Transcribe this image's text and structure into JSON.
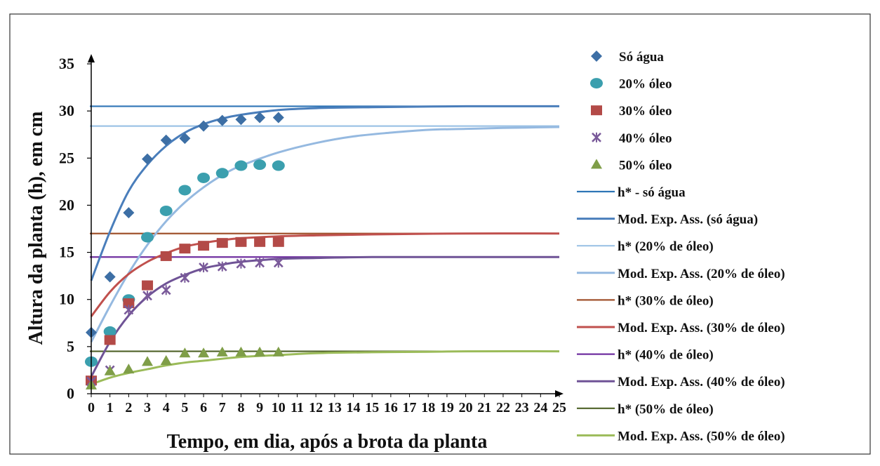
{
  "chart_data": {
    "type": "scatter",
    "title": "",
    "xlabel": "Tempo, em dia, após a brota da planta",
    "ylabel": "Altura da planta (h), em cm",
    "xlim": [
      0,
      25
    ],
    "ylim": [
      0,
      35
    ],
    "x_ticks": [
      "0",
      "1",
      "2",
      "3",
      "4",
      "5",
      "6",
      "7",
      "8",
      "9",
      "10",
      "11",
      "12",
      "13",
      "14",
      "15",
      "16",
      "17",
      "18",
      "19",
      "20",
      "21",
      "22",
      "23",
      "24",
      "25"
    ],
    "y_ticks": [
      "0",
      "5",
      "10",
      "15",
      "20",
      "25",
      "30",
      "35"
    ],
    "grid": false,
    "legend_position": "right",
    "series": [
      {
        "name": "Só água",
        "kind": "points",
        "marker": "diamond",
        "color": "#3d6fa5",
        "x": [
          0,
          1,
          2,
          3,
          4,
          5,
          6,
          7,
          8,
          9,
          10
        ],
        "y": [
          6.5,
          12.4,
          19.2,
          24.9,
          26.9,
          27.1,
          28.4,
          29.0,
          29.1,
          29.3,
          29.3
        ]
      },
      {
        "name": "20% óleo",
        "kind": "points",
        "marker": "circle",
        "color": "#3b9fae",
        "x": [
          0,
          1,
          2,
          3,
          4,
          5,
          6,
          7,
          8,
          9,
          10
        ],
        "y": [
          3.4,
          6.6,
          10.0,
          16.6,
          19.4,
          21.6,
          22.9,
          23.4,
          24.2,
          24.3,
          24.2
        ]
      },
      {
        "name": "30% óleo",
        "kind": "points",
        "marker": "square",
        "color": "#b34a47",
        "x": [
          0,
          1,
          2,
          3,
          4,
          5,
          6,
          7,
          8,
          9,
          10
        ],
        "y": [
          1.4,
          5.7,
          9.6,
          11.5,
          14.6,
          15.4,
          15.7,
          16.0,
          16.1,
          16.1,
          16.1
        ]
      },
      {
        "name": "40% óleo",
        "kind": "points",
        "marker": "x",
        "color": "#7a5a9a",
        "x": [
          0,
          1,
          2,
          3,
          4,
          5,
          6,
          7,
          8,
          9,
          10
        ],
        "y": [
          1.3,
          2.5,
          8.9,
          10.4,
          11.0,
          12.3,
          13.4,
          13.5,
          13.8,
          13.9,
          13.9
        ]
      },
      {
        "name": "50% óleo",
        "kind": "points",
        "marker": "triangle",
        "color": "#7f9e48",
        "x": [
          0,
          1,
          2,
          3,
          4,
          5,
          6,
          7,
          8,
          9,
          10
        ],
        "y": [
          0.9,
          2.4,
          2.6,
          3.4,
          3.5,
          4.3,
          4.3,
          4.4,
          4.4,
          4.4,
          4.4
        ]
      },
      {
        "name": "h* - só água",
        "kind": "hline",
        "color": "#2e75b6",
        "y": 30.5
      },
      {
        "name": "Mod. Exp. Ass. (só água)",
        "kind": "curve",
        "color": "#4a7ebb",
        "x": [
          0,
          1,
          2,
          3,
          4,
          5,
          6,
          7,
          8,
          10,
          12,
          15,
          20,
          25
        ],
        "y": [
          12.0,
          17.2,
          21.5,
          24.3,
          26.3,
          27.7,
          28.6,
          29.2,
          29.6,
          30.1,
          30.3,
          30.4,
          30.5,
          30.5
        ]
      },
      {
        "name": "h* (20% de óleo)",
        "kind": "hline",
        "color": "#9dc3e6",
        "y": 28.4
      },
      {
        "name": "Mod. Exp. Ass. (20% de óleo)",
        "kind": "curve",
        "color": "#95b9e0",
        "x": [
          0,
          1,
          2,
          3,
          4,
          5,
          6,
          7,
          8,
          10,
          12,
          14,
          16,
          18,
          20,
          22,
          25
        ],
        "y": [
          5.5,
          9.3,
          12.8,
          15.8,
          18.3,
          20.3,
          21.9,
          23.2,
          24.2,
          25.6,
          26.6,
          27.3,
          27.7,
          28.0,
          28.1,
          28.2,
          28.3
        ]
      },
      {
        "name": "h* (30% de óleo)",
        "kind": "hline",
        "color": "#a0522d",
        "y": 17.0
      },
      {
        "name": "Mod. Exp. Ass. (30% de óleo)",
        "kind": "curve",
        "color": "#c0504d",
        "x": [
          0,
          1,
          2,
          3,
          4,
          5,
          6,
          7,
          8,
          10,
          12,
          15,
          20,
          25
        ],
        "y": [
          8.2,
          10.8,
          12.7,
          14.0,
          14.9,
          15.6,
          16.0,
          16.3,
          16.5,
          16.7,
          16.8,
          16.9,
          17.0,
          17.0
        ]
      },
      {
        "name": "h* (40% de óleo)",
        "kind": "hline",
        "color": "#7030a0",
        "y": 14.5
      },
      {
        "name": "Mod. Exp. Ass. (40% de óleo)",
        "kind": "curve",
        "color": "#6f5396",
        "x": [
          0,
          1,
          2,
          3,
          4,
          5,
          6,
          7,
          8,
          10,
          12,
          15,
          20,
          25
        ],
        "y": [
          1.8,
          5.5,
          8.3,
          10.3,
          11.7,
          12.6,
          13.3,
          13.7,
          14.0,
          14.3,
          14.4,
          14.5,
          14.5,
          14.5
        ]
      },
      {
        "name": "h* (50% de óleo)",
        "kind": "hline",
        "color": "#4f6228",
        "y": 4.5
      },
      {
        "name": "Mod. Exp. Ass. (50% de óleo)",
        "kind": "curve",
        "color": "#9bbb59",
        "x": [
          0,
          1,
          2,
          3,
          4,
          5,
          6,
          8,
          10,
          12,
          15,
          18,
          20,
          25
        ],
        "y": [
          1.0,
          1.7,
          2.2,
          2.6,
          3.0,
          3.3,
          3.5,
          3.9,
          4.1,
          4.3,
          4.4,
          4.45,
          4.5,
          4.5
        ]
      }
    ]
  }
}
